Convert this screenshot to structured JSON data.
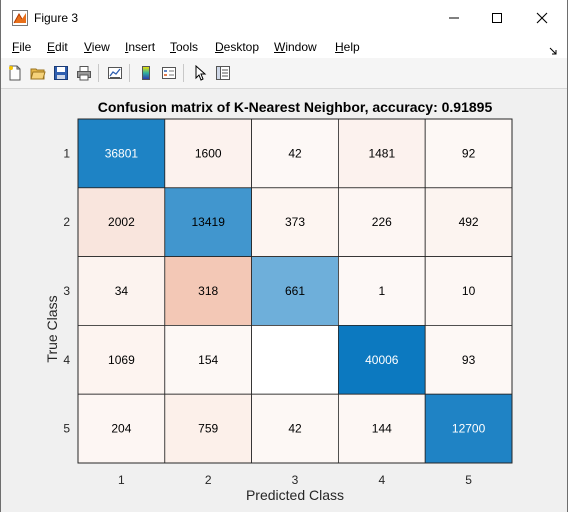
{
  "window": {
    "title": "Figure 3",
    "icon": "matlab-figure-icon"
  },
  "menu": [
    {
      "label": "File",
      "mnemonic": "F",
      "rest": "ile"
    },
    {
      "label": "Edit",
      "mnemonic": "E",
      "rest": "dit"
    },
    {
      "label": "View",
      "mnemonic": "V",
      "rest": "iew"
    },
    {
      "label": "Insert",
      "mnemonic": "I",
      "rest": "nsert"
    },
    {
      "label": "Tools",
      "mnemonic": "T",
      "rest": "ools"
    },
    {
      "label": "Desktop",
      "mnemonic": "D",
      "rest": "esktop"
    },
    {
      "label": "Window",
      "mnemonic": "W",
      "rest": "indow"
    },
    {
      "label": "Help",
      "mnemonic": "H",
      "rest": "elp"
    }
  ],
  "toolbar": [
    "new-figure-icon",
    "open-file-icon",
    "save-icon",
    "print-icon",
    "link-plot-icon",
    "insert-colorbar-icon",
    "insert-legend-icon",
    "edit-plot-icon",
    "property-inspector-icon"
  ],
  "chart_data": {
    "type": "heatmap",
    "title": "Confusion matrix of K-Nearest Neighbor, accuracy: 0.91895",
    "xlabel": "Predicted Class",
    "ylabel": "True Class",
    "x_categories": [
      "1",
      "2",
      "3",
      "4",
      "5"
    ],
    "y_categories": [
      "1",
      "2",
      "3",
      "4",
      "5"
    ],
    "matrix": [
      [
        36801,
        1600,
        42,
        1481,
        92
      ],
      [
        2002,
        13419,
        373,
        226,
        492
      ],
      [
        34,
        318,
        661,
        1,
        10
      ],
      [
        1069,
        154,
        null,
        40006,
        93
      ],
      [
        204,
        759,
        42,
        144,
        12700
      ]
    ],
    "diagonal_color": "#0072bd",
    "off_diagonal_color": "#d95319"
  }
}
